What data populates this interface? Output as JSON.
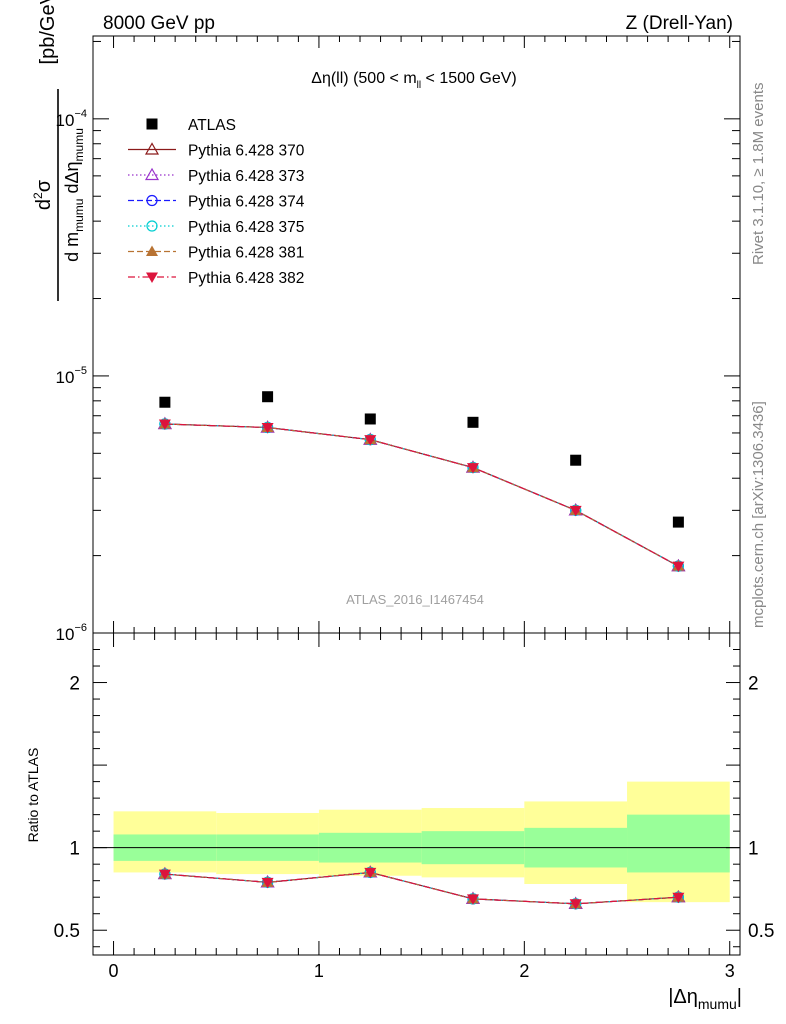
{
  "header": {
    "left": "8000 GeV pp",
    "right": "Z (Drell-Yan)"
  },
  "side_labels": {
    "rivet": "Rivet 3.1.10, ≥ 1.8M events",
    "mcplots": "mcplots.cern.ch [arXiv:1306.3436]"
  },
  "analysis_id": "ATLAS_2016_I1467454",
  "chart_data": [
    {
      "type": "scatter",
      "panel": "main",
      "title": "Δη(ll) (500 < m_ll < 1500 GeV)",
      "title_parts": {
        "a": "Δη(ll) (500 < m",
        "sub": "ll",
        "b": " < 1500 GeV)"
      },
      "ylabel_parts": {
        "num_base": "d",
        "num_sup": "2",
        "num_sym": "σ",
        "den_a": "d m",
        "den_sub1": "mumu",
        "den_b": " dΔη",
        "den_sub2": "mumu",
        "unit": "[pb/GeV]"
      },
      "yscale": "log",
      "xlim": [
        -0.1,
        3.05
      ],
      "ylim": [
        1e-06,
        0.00021
      ],
      "ytick_labels": [
        {
          "value": 1e-06,
          "base": "10",
          "exp": "−6"
        },
        {
          "value": 1e-05,
          "base": "10",
          "exp": "−5"
        },
        {
          "value": 0.0001,
          "base": "10",
          "exp": "−4"
        }
      ],
      "x": [
        0.25,
        0.75,
        1.25,
        1.75,
        2.25,
        2.75
      ],
      "series": [
        {
          "name": "ATLAS",
          "marker": "square-filled",
          "color": "#000000",
          "line": "none",
          "values": [
            7.9e-06,
            8.3e-06,
            6.8e-06,
            6.6e-06,
            4.7e-06,
            2.7e-06
          ]
        },
        {
          "name": "Pythia 6.428 370",
          "marker": "triangle-open",
          "color": "#8b1a1a",
          "line": "solid",
          "values": [
            6.5e-06,
            6.3e-06,
            5.65e-06,
            4.4e-06,
            3e-06,
            1.82e-06
          ]
        },
        {
          "name": "Pythia 6.428 373",
          "marker": "triangle-open",
          "color": "#9932cc",
          "line": "dotted",
          "values": [
            6.5e-06,
            6.3e-06,
            5.65e-06,
            4.4e-06,
            3e-06,
            1.82e-06
          ]
        },
        {
          "name": "Pythia 6.428 374",
          "marker": "circle-open",
          "color": "#1a1aff",
          "line": "dashed",
          "values": [
            6.5e-06,
            6.3e-06,
            5.65e-06,
            4.4e-06,
            3e-06,
            1.82e-06
          ]
        },
        {
          "name": "Pythia 6.428 375",
          "marker": "circle-open",
          "color": "#00ced1",
          "line": "dotted",
          "values": [
            6.5e-06,
            6.3e-06,
            5.65e-06,
            4.4e-06,
            3e-06,
            1.82e-06
          ]
        },
        {
          "name": "Pythia 6.428 381",
          "marker": "triangle-filled",
          "color": "#b87333",
          "line": "dashed",
          "values": [
            6.5e-06,
            6.3e-06,
            5.65e-06,
            4.4e-06,
            3e-06,
            1.82e-06
          ]
        },
        {
          "name": "Pythia 6.428 382",
          "marker": "triangle-down-filled",
          "color": "#dc143c",
          "line": "dashdot",
          "values": [
            6.5e-06,
            6.3e-06,
            5.65e-06,
            4.4e-06,
            3e-06,
            1.82e-06
          ]
        }
      ],
      "legend": "top-left"
    },
    {
      "type": "line",
      "panel": "ratio",
      "ylabel": "Ratio to ATLAS",
      "xlabel_parts": {
        "a": "|Δη",
        "sub": "mumu",
        "b": "|"
      },
      "xlim": [
        -0.1,
        3.05
      ],
      "ylim": [
        0.35,
        2.3
      ],
      "xticks": [
        0,
        1,
        2,
        3
      ],
      "xtick_labels": [
        "0",
        "1",
        "2",
        "3"
      ],
      "yticks": [
        0.5,
        1,
        2
      ],
      "ytick_labels": [
        "0.5",
        "1",
        "2"
      ],
      "bins": [
        [
          0,
          0.5
        ],
        [
          0.5,
          1.0
        ],
        [
          1.0,
          1.5
        ],
        [
          1.5,
          2.0
        ],
        [
          2.0,
          2.5
        ],
        [
          2.5,
          3.0
        ]
      ],
      "band_green": [
        [
          0.92,
          1.08
        ],
        [
          0.92,
          1.08
        ],
        [
          0.91,
          1.09
        ],
        [
          0.9,
          1.1
        ],
        [
          0.88,
          1.12
        ],
        [
          0.85,
          1.2
        ]
      ],
      "band_yellow": [
        [
          0.85,
          1.22
        ],
        [
          0.84,
          1.21
        ],
        [
          0.83,
          1.23
        ],
        [
          0.82,
          1.24
        ],
        [
          0.78,
          1.28
        ],
        [
          0.67,
          1.4
        ]
      ],
      "x": [
        0.25,
        0.75,
        1.25,
        1.75,
        2.25,
        2.75
      ],
      "ratio_values": [
        0.84,
        0.79,
        0.85,
        0.69,
        0.66,
        0.7
      ]
    }
  ]
}
